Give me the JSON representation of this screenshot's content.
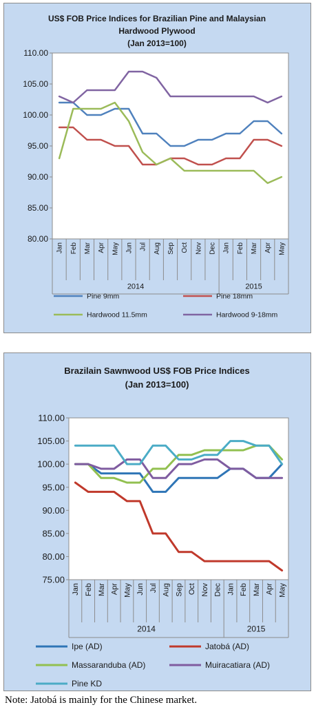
{
  "note": "Note: Jatobá is mainly for the Chinese market.",
  "chart_data": [
    {
      "type": "line",
      "title": [
        "US$ FOB Price Indices for Brazilian Pine and Malaysian",
        "Hardwood Plywood",
        "(Jan 2013=100)"
      ],
      "categories": [
        "Jan",
        "Feb",
        "Mar",
        "Apr",
        "May",
        "Jun",
        "Jul",
        "Aug",
        "Sep",
        "Oct",
        "Nov",
        "Dec",
        "Jan",
        "Feb",
        "Mar",
        "Apr",
        "May"
      ],
      "year_groups": [
        {
          "label": "2014",
          "count": 12
        },
        {
          "label": "2015",
          "count": 5
        }
      ],
      "ylim": [
        80,
        110
      ],
      "yticks": [
        "80.00",
        "85.00",
        "90.00",
        "95.00",
        "100.00",
        "105.00",
        "110.00"
      ],
      "grid": false,
      "legend_position": "bottom",
      "series": [
        {
          "name": "Pine 9mm",
          "color": "#4f81bd",
          "values": [
            102,
            102,
            100,
            100,
            101,
            101,
            97,
            97,
            95,
            95,
            96,
            96,
            97,
            97,
            99,
            99,
            97
          ]
        },
        {
          "name": "Pine 18mm",
          "color": "#c0504d",
          "values": [
            98,
            98,
            96,
            96,
            95,
            95,
            92,
            92,
            93,
            93,
            92,
            92,
            93,
            93,
            96,
            96,
            95
          ]
        },
        {
          "name": "Hardwood 11.5mm",
          "color": "#9bbb59",
          "values": [
            93,
            101,
            101,
            101,
            102,
            99,
            94,
            92,
            93,
            91,
            91,
            91,
            91,
            91,
            91,
            89,
            90
          ]
        },
        {
          "name": "Hardwood 9-18mm",
          "color": "#8064a2",
          "values": [
            103,
            102,
            104,
            104,
            104,
            107,
            107,
            106,
            103,
            103,
            103,
            103,
            103,
            103,
            103,
            102,
            103
          ]
        }
      ]
    },
    {
      "type": "line",
      "title": [
        "Brazilain Sawnwood US$ FOB Price Indices",
        "(Jan 2013=100)"
      ],
      "categories": [
        "Jan",
        "Feb",
        "Mar",
        "Apr",
        "May",
        "Jun",
        "Jul",
        "Aug",
        "Sep",
        "Oct",
        "Nov",
        "Dec",
        "Jan",
        "Feb",
        "Mar",
        "Apr",
        "May"
      ],
      "year_groups": [
        {
          "label": "2014",
          "count": 12
        },
        {
          "label": "2015",
          "count": 5
        }
      ],
      "ylim": [
        75,
        110
      ],
      "yticks": [
        "75.00",
        "80.00",
        "85.00",
        "90.00",
        "95.00",
        "100.00",
        "105.00",
        "110.00"
      ],
      "grid": false,
      "legend_position": "bottom",
      "series": [
        {
          "name": "Ipe (AD)",
          "color": "#2e75b6",
          "values": [
            100,
            100,
            98,
            98,
            98,
            98,
            94,
            94,
            97,
            97,
            97,
            97,
            99,
            99,
            97,
            97,
            100
          ]
        },
        {
          "name": "Jatobá (AD)",
          "color": "#c0392b",
          "values": [
            96,
            94,
            94,
            94,
            92,
            92,
            85,
            85,
            81,
            81,
            79,
            79,
            79,
            79,
            79,
            79,
            77
          ]
        },
        {
          "name": "Massaranduba (AD)",
          "color": "#92c050",
          "values": [
            100,
            100,
            97,
            97,
            96,
            96,
            99,
            99,
            102,
            102,
            103,
            103,
            103,
            103,
            104,
            104,
            101
          ]
        },
        {
          "name": "Muiracatiara (AD)",
          "color": "#7f5ca0",
          "values": [
            100,
            100,
            99,
            99,
            101,
            101,
            97,
            97,
            100,
            100,
            101,
            101,
            99,
            99,
            97,
            97,
            97
          ]
        },
        {
          "name": "Pine KD",
          "color": "#4bacc6",
          "values": [
            104,
            104,
            104,
            104,
            100,
            100,
            104,
            104,
            101,
            101,
            102,
            102,
            105,
            105,
            104,
            104,
            100
          ]
        }
      ]
    }
  ]
}
